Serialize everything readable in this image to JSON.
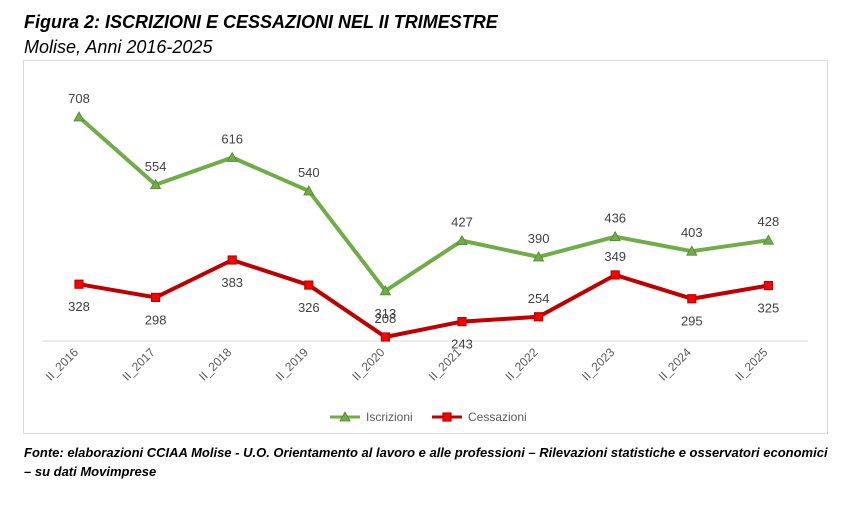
{
  "figure": {
    "title": "Figura 2: ISCRIZIONI E CESSAZIONI NEL II TRIMESTRE",
    "subtitle": "Molise, Anni 2016-2025",
    "source": "Fonte: elaborazioni CCIAA Molise - U.O. Orientamento al lavoro e alle professioni – Rilevazioni statistiche e osservatori economici – su dati Movimprese"
  },
  "chart_data": {
    "type": "line",
    "title": "Figura 2: ISCRIZIONI E CESSAZIONI NEL II TRIMESTRE",
    "subtitle": "Molise, Anni 2016-2025",
    "categories": [
      "II_2016",
      "II_2017",
      "II_2018",
      "II_2019",
      "II_2020",
      "II_2021",
      "II_2022",
      "II_2023",
      "II_2024",
      "II_2025"
    ],
    "series": [
      {
        "name": "Iscrizioni",
        "color": "#70ad47",
        "marker": "triangle",
        "values": [
          708,
          554,
          616,
          540,
          313,
          427,
          390,
          436,
          403,
          428
        ]
      },
      {
        "name": "Cessazioni",
        "color": "#c00000",
        "marker": "square",
        "values": [
          328,
          298,
          383,
          326,
          208,
          243,
          254,
          349,
          295,
          325
        ]
      }
    ],
    "ylim": [
      200,
      750
    ],
    "xlabel": "",
    "ylabel": "",
    "grid": false,
    "legend_position": "bottom",
    "data_labels": true
  }
}
